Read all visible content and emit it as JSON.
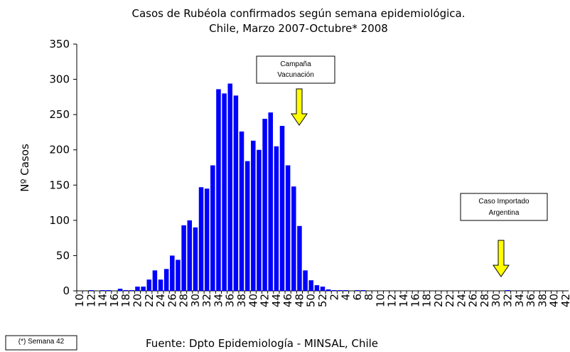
{
  "chart_data": {
    "type": "bar",
    "title": "Casos de Rubéola confirmados según semana epidemiológica.",
    "subtitle": "Chile, Marzo 2007-Octubre* 2008",
    "y_label": "Nº Casos",
    "categories": [
      "10",
      null,
      "12",
      null,
      "14",
      null,
      "16",
      null,
      "18",
      null,
      "20",
      null,
      "22",
      null,
      "24",
      null,
      "26",
      null,
      "28",
      null,
      "30",
      null,
      "32",
      null,
      "34",
      null,
      "36",
      null,
      "38",
      null,
      "40",
      null,
      "42",
      null,
      "44",
      null,
      "46",
      null,
      "48",
      null,
      "50",
      null,
      "52",
      null,
      "2",
      null,
      "4",
      null,
      "6",
      null,
      "8",
      null,
      "10",
      null,
      "12",
      null,
      "14",
      null,
      "16",
      null,
      "18",
      null,
      "20",
      null,
      "22",
      null,
      "24",
      null,
      "26",
      null,
      "28",
      null,
      "30",
      null,
      "32",
      null,
      "34",
      null,
      "36",
      null,
      "38",
      null,
      "40",
      null,
      "42"
    ],
    "values": [
      0,
      0,
      1,
      0,
      1,
      1,
      0,
      3,
      1,
      1,
      6,
      6,
      16,
      29,
      16,
      31,
      50,
      44,
      93,
      100,
      90,
      147,
      145,
      178,
      286,
      280,
      294,
      277,
      226,
      184,
      213,
      200,
      244,
      253,
      205,
      234,
      178,
      148,
      92,
      29,
      15,
      8,
      6,
      2,
      1,
      1,
      1,
      0,
      1,
      1,
      0,
      0,
      0,
      0,
      0,
      0,
      0,
      0,
      0,
      0,
      0,
      0,
      0,
      0,
      0,
      0,
      0,
      0,
      0,
      0,
      0,
      0,
      0,
      0,
      1,
      0,
      0,
      0,
      0,
      0,
      0,
      0,
      0,
      0,
      0
    ],
    "color": "#0000ff",
    "ylim": [
      0,
      350
    ],
    "yticks": [
      0,
      50,
      100,
      150,
      200,
      250,
      300,
      350
    ],
    "annotations": [
      {
        "lines": [
          "Campaña",
          "Vacunación"
        ]
      },
      {
        "lines": [
          "Caso Importado",
          "Argentina"
        ]
      }
    ],
    "footnote": "(*) Semana 42",
    "source": "Fuente: Dpto Epidemiología - MINSAL, Chile"
  }
}
